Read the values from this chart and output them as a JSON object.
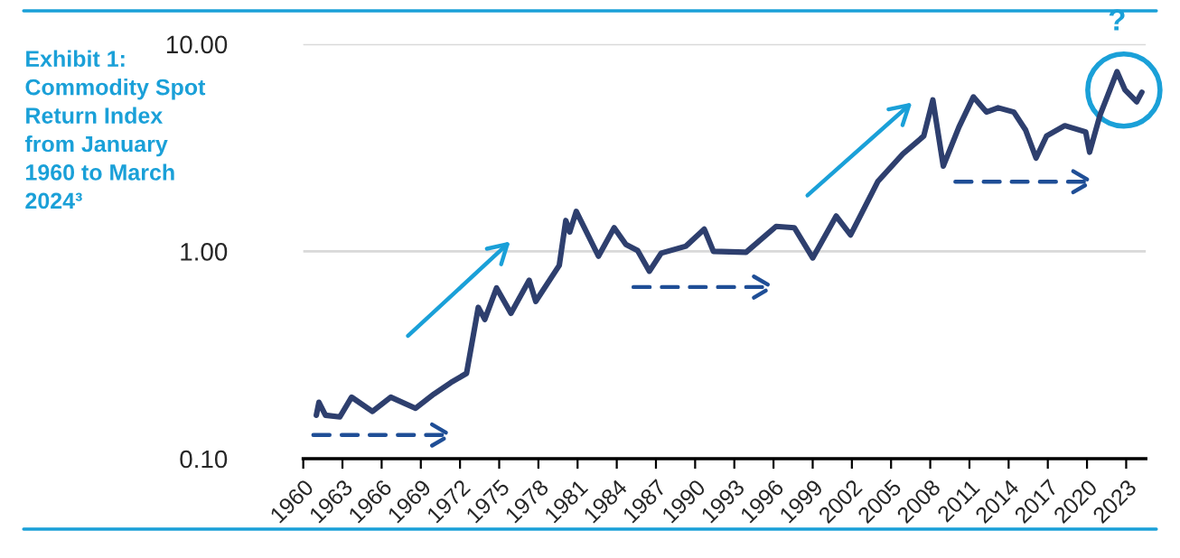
{
  "chart_data": {
    "type": "line",
    "title": "Exhibit 1: Commodity Spot Return Index from January 1960 to March 2024³",
    "annotations": [
      {
        "text": "?",
        "x": 2022.3,
        "y": 7.36
      }
    ],
    "x": [
      1961.0,
      1961.2,
      1961.7,
      1962.8,
      1963.7,
      1965.3,
      1966.7,
      1968.6,
      1970.0,
      1971.3,
      1972.5,
      1973.4,
      1973.9,
      1974.8,
      1975.9,
      1977.3,
      1977.8,
      1979.6,
      1980.1,
      1980.4,
      1980.9,
      1982.6,
      1983.8,
      1984.7,
      1985.6,
      1986.5,
      1987.4,
      1989.3,
      1990.7,
      1991.4,
      1993.9,
      1996.2,
      1997.6,
      1999.0,
      2000.8,
      2001.9,
      2004.0,
      2005.9,
      2007.5,
      2008.2,
      2009.0,
      2010.2,
      2011.3,
      2012.3,
      2013.2,
      2014.4,
      2015.3,
      2016.1,
      2016.9,
      2018.3,
      2019.9,
      2020.2,
      2021.0,
      2022.3,
      2022.9,
      2023.8,
      2024.2
    ],
    "series": [
      {
        "color": "#2e3f6e",
        "values": [
          0.162,
          0.187,
          0.162,
          0.159,
          0.198,
          0.169,
          0.198,
          0.175,
          0.205,
          0.233,
          0.258,
          0.537,
          0.47,
          0.666,
          0.503,
          0.726,
          0.574,
          0.857,
          1.41,
          1.24,
          1.56,
          0.948,
          1.3,
          1.08,
          1.01,
          0.802,
          0.98,
          1.06,
          1.28,
          1.0,
          0.99,
          1.32,
          1.3,
          0.93,
          1.48,
          1.2,
          2.18,
          2.95,
          3.6,
          5.38,
          2.58,
          3.98,
          5.56,
          4.7,
          4.93,
          4.7,
          3.85,
          2.82,
          3.6,
          4.04,
          3.77,
          3.01,
          4.55,
          7.36,
          6.03,
          5.27,
          5.86
        ]
      }
    ],
    "log": "y",
    "xlim": [
      1960,
      2024.5
    ],
    "xticks": [
      1960,
      1963,
      1966,
      1969,
      1972,
      1975,
      1978,
      1981,
      1984,
      1987,
      1990,
      1993,
      1996,
      1999,
      2002,
      2005,
      2008,
      2011,
      2014,
      2017,
      2020,
      2023
    ],
    "ylim": [
      0.1,
      10
    ],
    "yticks": [
      {
        "value": 0.1,
        "label": "0.10"
      },
      {
        "value": 1,
        "label": "1.00"
      },
      {
        "value": 10,
        "label": "10.00"
      }
    ],
    "grid": "y",
    "marker": "none",
    "line_style": "solid"
  }
}
